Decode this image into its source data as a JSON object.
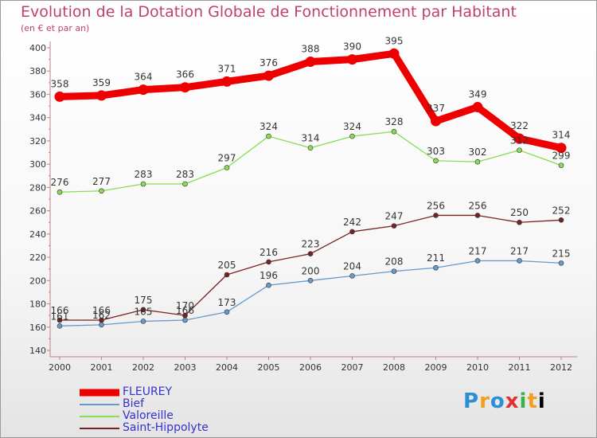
{
  "chart_data": {
    "type": "line",
    "title": "Evolution de la Dotation Globale de Fonctionnement par Habitant",
    "subtitle": "(en € et par an)",
    "xlabel": "",
    "ylabel": "",
    "ylim": [
      140,
      400
    ],
    "ytick_step": 20,
    "grid": false,
    "legend_position": "bottom-left",
    "categories": [
      "2000",
      "2001",
      "2002",
      "2003",
      "2004",
      "2005",
      "2006",
      "2007",
      "2008",
      "2009",
      "2010",
      "2011",
      "2012"
    ],
    "series": [
      {
        "name": "FLEUREY",
        "color": "#ee0000",
        "values": [
          358,
          359,
          364,
          366,
          371,
          376,
          388,
          390,
          395,
          337,
          349,
          322,
          314
        ]
      },
      {
        "name": "Bief",
        "color": "#6699cc",
        "values": [
          161,
          162,
          165,
          166,
          173,
          196,
          200,
          204,
          208,
          211,
          217,
          217,
          215
        ]
      },
      {
        "name": "Valoreille",
        "color": "#88dd55",
        "values": [
          276,
          277,
          283,
          283,
          297,
          324,
          314,
          324,
          328,
          303,
          302,
          312,
          299
        ]
      },
      {
        "name": "Saint-Hippolyte",
        "color": "#772222",
        "values": [
          166,
          166,
          175,
          170,
          205,
          216,
          223,
          242,
          247,
          256,
          256,
          250,
          252
        ]
      }
    ]
  },
  "logo": {
    "letters": [
      "P",
      "r",
      "o",
      "x",
      "i",
      "t",
      "i"
    ]
  }
}
